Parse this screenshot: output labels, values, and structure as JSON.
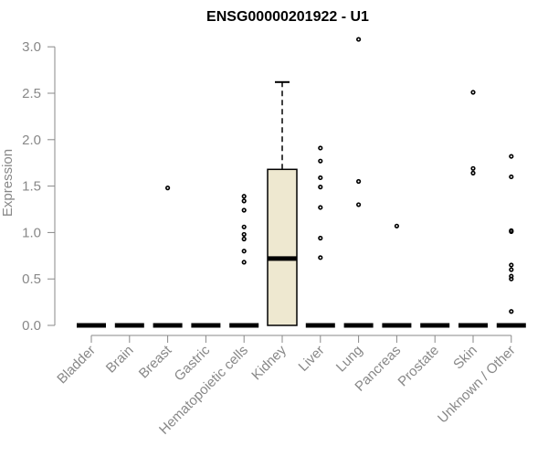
{
  "chart_data": {
    "type": "box",
    "title": "ENSG00000201922 - U1",
    "xlabel": "",
    "ylabel": "Expression",
    "ylim": [
      0,
      3.1
    ],
    "yticks": [
      "0.0",
      "0.5",
      "1.0",
      "1.5",
      "2.0",
      "2.5",
      "3.0"
    ],
    "grid": false,
    "colors": {
      "box_fill": "#EEE8D0",
      "axis": "#888888",
      "marks": "#000000"
    },
    "categories": [
      "Bladder",
      "Brain",
      "Breast",
      "Gastric",
      "Hematopoietic cells",
      "Kidney",
      "Liver",
      "Lung",
      "Pancreas",
      "Prostate",
      "Skin",
      "Unknown / Other"
    ],
    "boxes": [
      {
        "category": "Bladder",
        "q1": 0,
        "median": 0,
        "q3": 0,
        "whisker_low": 0,
        "whisker_high": 0,
        "outliers": []
      },
      {
        "category": "Brain",
        "q1": 0,
        "median": 0,
        "q3": 0,
        "whisker_low": 0,
        "whisker_high": 0,
        "outliers": []
      },
      {
        "category": "Breast",
        "q1": 0,
        "median": 0,
        "q3": 0,
        "whisker_low": 0,
        "whisker_high": 0,
        "outliers": [
          1.48
        ]
      },
      {
        "category": "Gastric",
        "q1": 0,
        "median": 0,
        "q3": 0,
        "whisker_low": 0,
        "whisker_high": 0,
        "outliers": []
      },
      {
        "category": "Hematopoietic cells",
        "q1": 0,
        "median": 0,
        "q3": 0,
        "whisker_low": 0,
        "whisker_high": 0,
        "outliers": [
          0.68,
          0.8,
          0.93,
          0.98,
          1.06,
          1.24,
          1.34,
          1.39
        ]
      },
      {
        "category": "Kidney",
        "q1": 0,
        "median": 0.72,
        "q3": 1.68,
        "whisker_low": 0,
        "whisker_high": 2.62,
        "outliers": []
      },
      {
        "category": "Liver",
        "q1": 0,
        "median": 0,
        "q3": 0,
        "whisker_low": 0,
        "whisker_high": 0,
        "outliers": [
          0.73,
          0.94,
          1.27,
          1.49,
          1.59,
          1.77,
          1.91
        ]
      },
      {
        "category": "Lung",
        "q1": 0,
        "median": 0,
        "q3": 0,
        "whisker_low": 0,
        "whisker_high": 0,
        "outliers": [
          1.3,
          1.55,
          3.08
        ]
      },
      {
        "category": "Pancreas",
        "q1": 0,
        "median": 0,
        "q3": 0,
        "whisker_low": 0,
        "whisker_high": 0,
        "outliers": [
          1.07
        ]
      },
      {
        "category": "Prostate",
        "q1": 0,
        "median": 0,
        "q3": 0,
        "whisker_low": 0,
        "whisker_high": 0,
        "outliers": []
      },
      {
        "category": "Skin",
        "q1": 0,
        "median": 0,
        "q3": 0,
        "whisker_low": 0,
        "whisker_high": 0,
        "outliers": [
          1.64,
          1.69,
          2.51
        ]
      },
      {
        "category": "Unknown / Other",
        "q1": 0,
        "median": 0,
        "q3": 0,
        "whisker_low": 0,
        "whisker_high": 0,
        "outliers": [
          0.15,
          0.5,
          0.53,
          0.6,
          0.65,
          1.01,
          1.02,
          1.6,
          1.82
        ]
      }
    ]
  }
}
